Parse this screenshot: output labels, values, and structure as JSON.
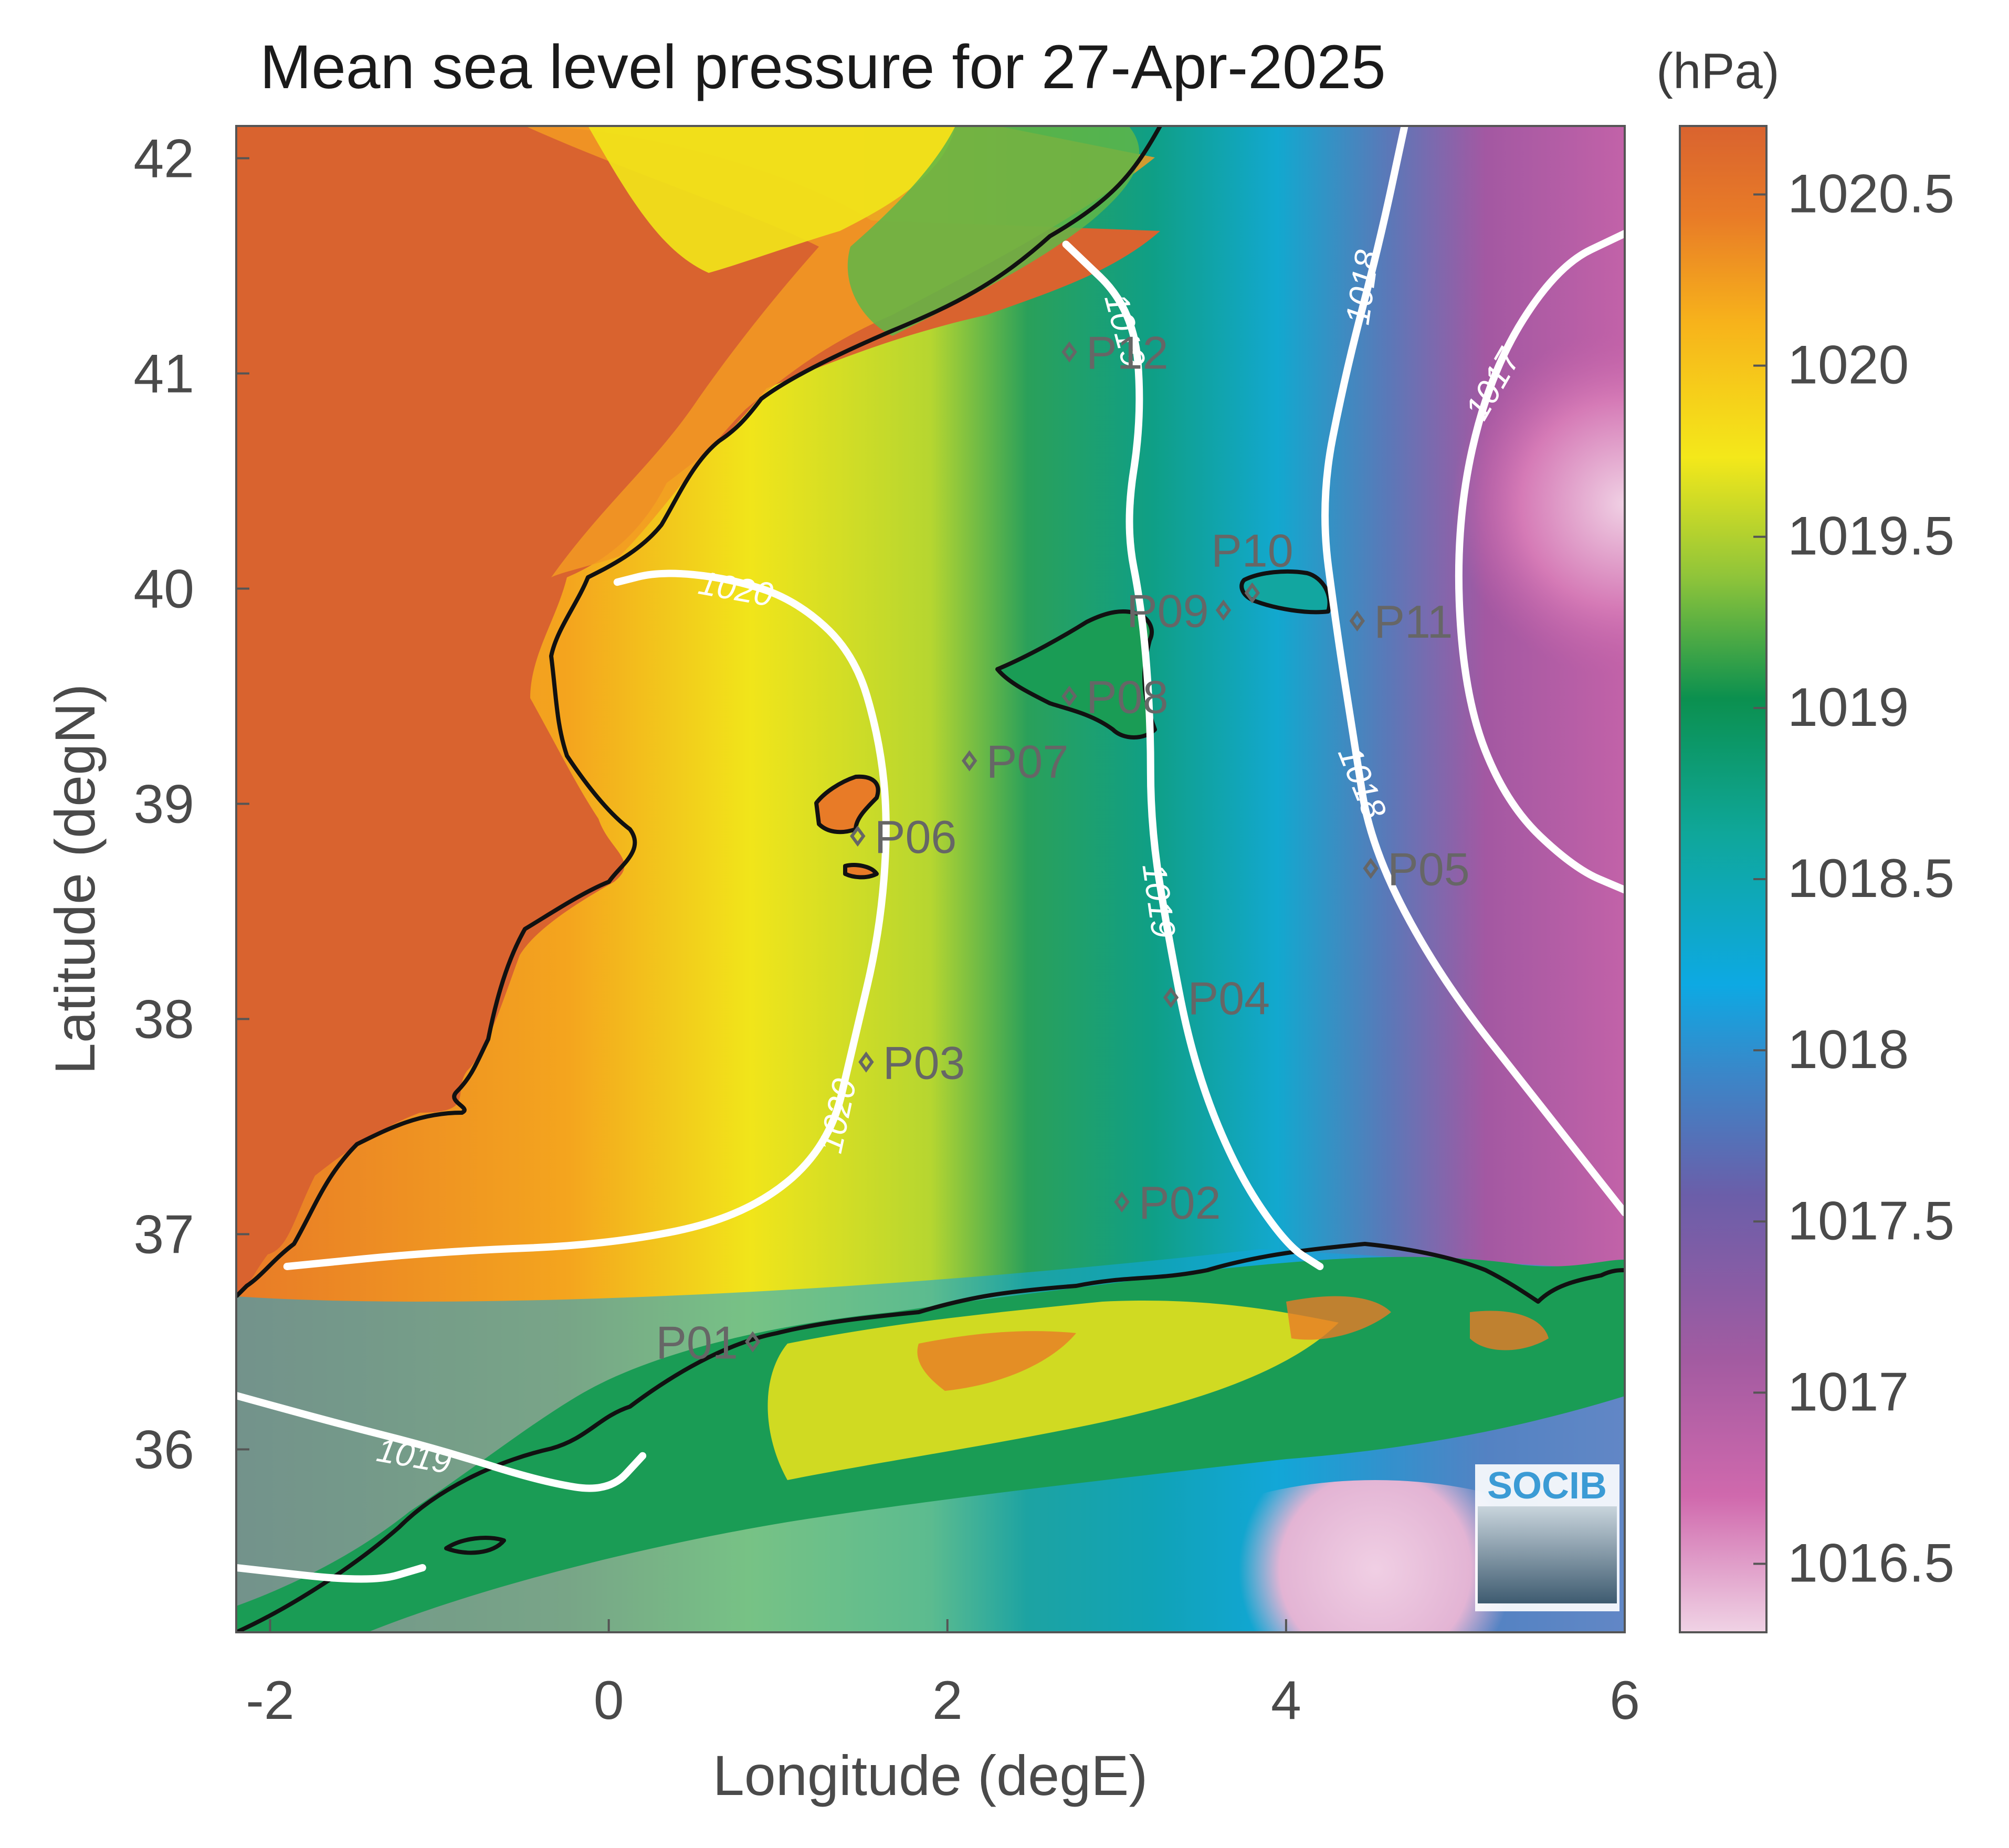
{
  "title": "Mean sea level pressure for 27-Apr-2025",
  "units": "(hPa)",
  "axes": {
    "xlabel": "Longitude (degE)",
    "ylabel": "Latitude (degN)",
    "xlim": [
      -2.2,
      6
    ],
    "ylim": [
      35.15,
      42.15
    ],
    "xticks": [
      {
        "value": -2,
        "label": "-2"
      },
      {
        "value": 0,
        "label": "0"
      },
      {
        "value": 2,
        "label": "2"
      },
      {
        "value": 4,
        "label": "4"
      },
      {
        "value": 6,
        "label": "6"
      }
    ],
    "yticks": [
      {
        "value": 36,
        "label": "36"
      },
      {
        "value": 37,
        "label": "37"
      },
      {
        "value": 38,
        "label": "38"
      },
      {
        "value": 39,
        "label": "39"
      },
      {
        "value": 40,
        "label": "40"
      },
      {
        "value": 41,
        "label": "41"
      },
      {
        "value": 42,
        "label": "42"
      }
    ]
  },
  "colorbar": {
    "range": [
      1016.3,
      1020.7
    ],
    "ticks": [
      {
        "value": 1016.5,
        "label": "1016.5"
      },
      {
        "value": 1017,
        "label": "1017"
      },
      {
        "value": 1017.5,
        "label": "1017.5"
      },
      {
        "value": 1018,
        "label": "1018"
      },
      {
        "value": 1018.5,
        "label": "1018.5"
      },
      {
        "value": 1019,
        "label": "1019"
      },
      {
        "value": 1019.5,
        "label": "1019.5"
      },
      {
        "value": 1020,
        "label": "1020"
      },
      {
        "value": 1020.5,
        "label": "1020.5"
      }
    ]
  },
  "contours": [
    {
      "level": "1020",
      "points": [
        [
          0.05,
          40.03
        ],
        [
          0.3,
          40.08
        ],
        [
          0.7,
          40.05
        ],
        [
          1.1,
          39.95
        ],
        [
          1.45,
          39.7
        ],
        [
          1.6,
          39.3
        ],
        [
          1.65,
          38.9
        ],
        [
          1.6,
          38.4
        ],
        [
          1.45,
          37.9
        ],
        [
          1.3,
          37.4
        ],
        [
          0.8,
          37.08
        ],
        [
          0,
          36.95
        ],
        [
          -1,
          36.92
        ],
        [
          -1.9,
          36.85
        ]
      ],
      "labels": [
        {
          "lon": 0.75,
          "lat": 40.0,
          "rot": 10
        },
        {
          "lon": 1.35,
          "lat": 37.55,
          "rot": -78
        }
      ]
    },
    {
      "level": "1019",
      "points": [
        [
          2.7,
          41.6
        ],
        [
          3.1,
          41.3
        ],
        [
          3.15,
          40.8
        ],
        [
          3.05,
          40.3
        ],
        [
          3.15,
          39.9
        ],
        [
          3.2,
          39.4
        ],
        [
          3.2,
          38.9
        ],
        [
          3.3,
          38.4
        ],
        [
          3.45,
          37.8
        ],
        [
          3.7,
          37.3
        ],
        [
          4.0,
          36.95
        ],
        [
          4.2,
          36.85
        ]
      ],
      "labels": [
        {
          "lon": 3.05,
          "lat": 41.2,
          "rot": 75
        },
        {
          "lon": 3.25,
          "lat": 38.55,
          "rot": 82
        }
      ]
    },
    {
      "level": "1019",
      "points": [
        [
          -2.2,
          36.25
        ],
        [
          -1.6,
          36.12
        ],
        [
          -1.0,
          36.0
        ],
        [
          -0.4,
          35.85
        ],
        [
          0,
          35.8
        ],
        [
          0.2,
          35.97
        ]
      ],
      "labels": [
        {
          "lon": -1.15,
          "lat": 35.97,
          "rot": 10
        }
      ]
    },
    {
      "level": "1019",
      "points": [
        [
          -2.2,
          35.45
        ],
        [
          -1.4,
          35.38
        ],
        [
          -1.1,
          35.45
        ]
      ],
      "labels": []
    },
    {
      "level": "1018",
      "points": [
        [
          4.7,
          42.15
        ],
        [
          4.55,
          41.6
        ],
        [
          4.35,
          41.0
        ],
        [
          4.2,
          40.4
        ],
        [
          4.3,
          39.8
        ],
        [
          4.4,
          39.3
        ],
        [
          4.5,
          38.8
        ],
        [
          4.9,
          38.2
        ],
        [
          5.5,
          37.6
        ],
        [
          6.0,
          37.1
        ]
      ],
      "labels": [
        {
          "lon": 4.45,
          "lat": 41.4,
          "rot": -82
        },
        {
          "lon": 4.45,
          "lat": 39.1,
          "rot": 68
        }
      ]
    },
    {
      "level": "1017",
      "points": [
        [
          6.0,
          41.65
        ],
        [
          5.6,
          41.5
        ],
        [
          5.2,
          41.0
        ],
        [
          5.0,
          40.3
        ],
        [
          5.05,
          39.5
        ],
        [
          5.3,
          39.0
        ],
        [
          5.7,
          38.7
        ],
        [
          6.0,
          38.6
        ]
      ],
      "labels": [
        {
          "lon": 5.22,
          "lat": 40.95,
          "rot": -60
        }
      ]
    }
  ],
  "stations": [
    {
      "id": "P01",
      "lon": 0.85,
      "lat": 36.5,
      "side": "left"
    },
    {
      "id": "P02",
      "lon": 3.03,
      "lat": 37.15,
      "side": "right"
    },
    {
      "id": "P03",
      "lon": 1.52,
      "lat": 37.8,
      "side": "right"
    },
    {
      "id": "P04",
      "lon": 3.32,
      "lat": 38.1,
      "side": "right"
    },
    {
      "id": "P05",
      "lon": 4.5,
      "lat": 38.7,
      "side": "right"
    },
    {
      "id": "P06",
      "lon": 1.47,
      "lat": 38.85,
      "side": "right"
    },
    {
      "id": "P07",
      "lon": 2.13,
      "lat": 39.2,
      "side": "right"
    },
    {
      "id": "P08",
      "lon": 2.72,
      "lat": 39.5,
      "side": "right"
    },
    {
      "id": "P09",
      "lon": 3.63,
      "lat": 39.9,
      "side": "left"
    },
    {
      "id": "P10",
      "lon": 3.8,
      "lat": 39.98,
      "side": "above"
    },
    {
      "id": "P11",
      "lon": 4.42,
      "lat": 39.85,
      "side": "right"
    },
    {
      "id": "P12",
      "lon": 2.72,
      "lat": 41.1,
      "side": "right"
    }
  ],
  "logo": {
    "text": "SOCIB"
  },
  "colors": {
    "land_high": "#d9632f",
    "sea_1020_5": "#e87b27",
    "sea_1020": "#f8b81c",
    "sea_1019_5": "#f1e51a",
    "sea_1019": "#12915a",
    "sea_1018_5": "#0da39b",
    "sea_1018": "#12a6de",
    "sea_1017_5": "#6760a8",
    "sea_1017": "#a957a0",
    "sea_1016_5": "#e6bcd6",
    "contour": "#ffffff",
    "coastline": "#111111",
    "station": "#666666"
  }
}
